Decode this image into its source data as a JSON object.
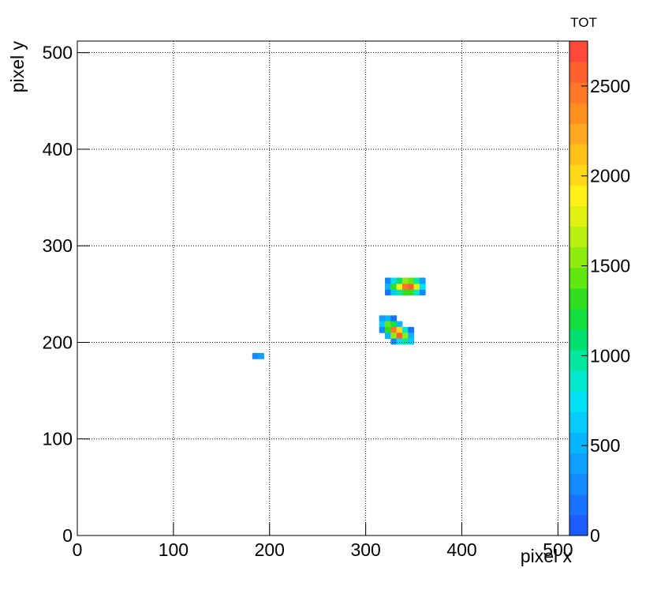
{
  "chart_data": {
    "type": "heatmap",
    "x_label": "pixel x",
    "y_label": "pixel y",
    "z_label": "TOT",
    "xlim": [
      0,
      512
    ],
    "ylim": [
      0,
      512
    ],
    "zlim": [
      0,
      2750
    ],
    "xticks": [
      0,
      100,
      200,
      300,
      400,
      500
    ],
    "yticks": [
      0,
      100,
      200,
      300,
      400,
      500
    ],
    "zticks": [
      0,
      500,
      1000,
      1500,
      2000,
      2500
    ],
    "grid": true,
    "bin_size": 6,
    "palette": [
      "#1f5cff",
      "#1a73ff",
      "#1589ff",
      "#0f9fff",
      "#0ab5ff",
      "#05cbff",
      "#00e0f5",
      "#00e8cc",
      "#00e8a0",
      "#00e070",
      "#10e040",
      "#30e020",
      "#60e810",
      "#90ec10",
      "#b8ee10",
      "#e0f010",
      "#fff018",
      "#ffd818",
      "#ffc018",
      "#ffa820",
      "#ff9020",
      "#ff7828",
      "#ff6030",
      "#ff4838"
    ],
    "x": [
      320,
      326,
      332,
      338,
      344,
      350,
      356,
      320,
      326,
      332,
      338,
      344,
      350,
      356,
      320,
      326,
      332,
      338,
      344,
      350,
      356,
      314,
      320,
      326,
      314,
      320,
      326,
      332,
      314,
      320,
      326,
      332,
      338,
      344,
      320,
      326,
      332,
      338,
      344,
      326,
      332,
      338,
      344,
      182,
      188
    ],
    "y": [
      249,
      249,
      249,
      249,
      249,
      249,
      249,
      255,
      255,
      255,
      255,
      255,
      255,
      255,
      261,
      261,
      261,
      261,
      261,
      261,
      261,
      222,
      222,
      222,
      216,
      216,
      216,
      216,
      210,
      210,
      210,
      210,
      210,
      210,
      204,
      204,
      204,
      204,
      204,
      198,
      198,
      198,
      198,
      183,
      183
    ],
    "values": [
      200,
      600,
      1000,
      1300,
      1300,
      900,
      300,
      500,
      1300,
      1900,
      2500,
      2600,
      1800,
      700,
      300,
      700,
      1100,
      1500,
      1400,
      1000,
      400,
      400,
      500,
      200,
      600,
      1400,
      1200,
      500,
      300,
      1300,
      2500,
      2000,
      900,
      200,
      500,
      1500,
      2600,
      1500,
      500,
      300,
      800,
      1000,
      600,
      300,
      350
    ]
  }
}
